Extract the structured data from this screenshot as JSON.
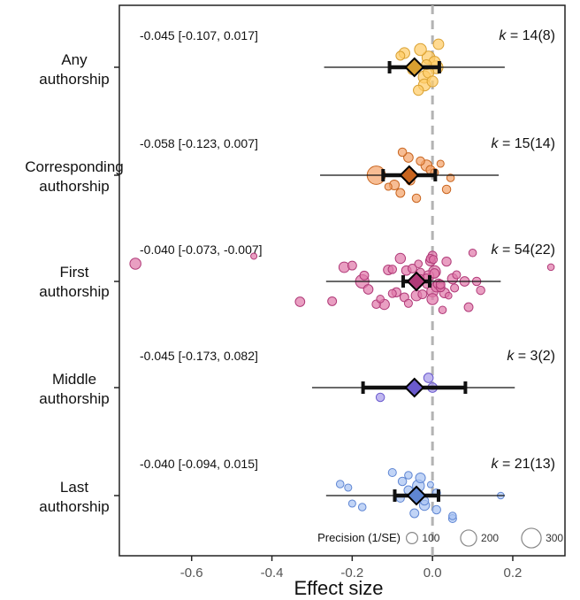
{
  "chart_data": {
    "type": "forest-scatter",
    "xlabel": "Effect size",
    "xlim": [
      -0.78,
      0.33
    ],
    "xticks": [
      -0.6,
      -0.4,
      -0.2,
      0.0,
      0.2
    ],
    "xtick_labels": [
      "-0.6",
      "-0.4",
      "-0.2",
      "0.0",
      "0.2"
    ],
    "reference_line": 0.0,
    "legend": {
      "title": "Precision (1/SE)",
      "sizes": [
        100,
        200,
        300
      ],
      "labels": [
        "100",
        "200",
        "300"
      ]
    },
    "groups": [
      {
        "label_line1": "Any",
        "label_line2": "authorship",
        "estimate": -0.045,
        "ci_low": -0.107,
        "ci_high": 0.017,
        "pi_low": -0.27,
        "pi_high": 0.18,
        "ci_text": "-0.045 [-0.107, 0.017]",
        "k_prefix": "k",
        "k_value": " = 14(8)",
        "color": "#FFCC66",
        "edge": "#D9A030",
        "points": [
          {
            "x": -0.01,
            "p": 90
          },
          {
            "x": 0.005,
            "p": 100
          },
          {
            "x": -0.02,
            "p": 120
          },
          {
            "x": 0.01,
            "p": 130
          },
          {
            "x": -0.08,
            "p": 60
          },
          {
            "x": -0.07,
            "p": 90
          },
          {
            "x": -0.05,
            "p": 70
          },
          {
            "x": -0.035,
            "p": 80
          },
          {
            "x": -0.015,
            "p": 75
          },
          {
            "x": 0.015,
            "p": 85
          },
          {
            "x": -0.03,
            "p": 110
          },
          {
            "x": -0.02,
            "p": 110
          },
          {
            "x": -0.01,
            "p": 130
          },
          {
            "x": 0.0,
            "p": 90
          }
        ]
      },
      {
        "label_line1": "Corresponding",
        "label_line2": "authorship",
        "estimate": -0.058,
        "ci_low": -0.123,
        "ci_high": 0.007,
        "pi_low": -0.28,
        "pi_high": 0.165,
        "ci_text": "-0.058 [-0.123, 0.007]",
        "k_prefix": "k",
        "k_value": " = 15(14)",
        "color": "#F4A36B",
        "edge": "#C8641E",
        "points": [
          {
            "x": -0.015,
            "p": 95
          },
          {
            "x": -0.08,
            "p": 60
          },
          {
            "x": 0.02,
            "p": 40
          },
          {
            "x": 0.045,
            "p": 45
          },
          {
            "x": -0.11,
            "p": 40
          },
          {
            "x": -0.095,
            "p": 75
          },
          {
            "x": -0.03,
            "p": 55
          },
          {
            "x": -0.005,
            "p": 60
          },
          {
            "x": 0.035,
            "p": 55
          },
          {
            "x": -0.075,
            "p": 55
          },
          {
            "x": -0.14,
            "p": 260
          },
          {
            "x": -0.04,
            "p": 55
          },
          {
            "x": 0.005,
            "p": 50
          },
          {
            "x": -0.06,
            "p": 70
          },
          {
            "x": -0.055,
            "p": 60
          }
        ]
      },
      {
        "label_line1": "First",
        "label_line2": "authorship",
        "estimate": -0.04,
        "ci_low": -0.073,
        "ci_high": -0.007,
        "pi_low": -0.265,
        "pi_high": 0.17,
        "ci_text": "-0.040 [-0.073, -0.007]",
        "k_prefix": "k",
        "k_value": " = 54(22)",
        "color": "#E07AAB",
        "edge": "#B03A78",
        "points": [
          {
            "x": -0.74,
            "p": 95
          },
          {
            "x": -0.445,
            "p": 30
          },
          {
            "x": -0.33,
            "p": 70
          },
          {
            "x": -0.25,
            "p": 60
          },
          {
            "x": -0.17,
            "p": 60
          },
          {
            "x": -0.1,
            "p": 50
          },
          {
            "x": 0.295,
            "p": 35
          },
          {
            "x": 0.002,
            "p": 50
          },
          {
            "x": -0.005,
            "p": 55
          },
          {
            "x": 0.005,
            "p": 70
          },
          {
            "x": -0.01,
            "p": 90
          },
          {
            "x": 0.01,
            "p": 85
          },
          {
            "x": 0.02,
            "p": 60
          },
          {
            "x": 0.04,
            "p": 35
          },
          {
            "x": -0.03,
            "p": 40
          },
          {
            "x": -0.06,
            "p": 50
          },
          {
            "x": -0.08,
            "p": 80
          },
          {
            "x": -0.12,
            "p": 80
          },
          {
            "x": -0.14,
            "p": 55
          },
          {
            "x": -0.16,
            "p": 70
          },
          {
            "x": -0.2,
            "p": 60
          },
          {
            "x": -0.22,
            "p": 85
          },
          {
            "x": -0.175,
            "p": 140
          },
          {
            "x": -0.11,
            "p": 75
          },
          {
            "x": -0.07,
            "p": 60
          },
          {
            "x": -0.03,
            "p": 55
          },
          {
            "x": 0.0,
            "p": 60
          },
          {
            "x": 0.03,
            "p": 75
          },
          {
            "x": 0.06,
            "p": 50
          },
          {
            "x": 0.09,
            "p": 60
          },
          {
            "x": 0.12,
            "p": 55
          },
          {
            "x": -0.015,
            "p": 60
          },
          {
            "x": 0.02,
            "p": 60
          },
          {
            "x": 0.05,
            "p": 80
          },
          {
            "x": 0.08,
            "p": 70
          },
          {
            "x": 0.11,
            "p": 55
          },
          {
            "x": -0.05,
            "p": 60
          },
          {
            "x": -0.09,
            "p": 65
          },
          {
            "x": -0.04,
            "p": 85
          },
          {
            "x": 0.0,
            "p": 95
          },
          {
            "x": 0.015,
            "p": 80
          },
          {
            "x": 0.035,
            "p": 65
          },
          {
            "x": -0.025,
            "p": 60
          },
          {
            "x": -0.065,
            "p": 70
          },
          {
            "x": 0.0,
            "p": 100
          },
          {
            "x": -0.005,
            "p": 75
          },
          {
            "x": -0.035,
            "p": 45
          },
          {
            "x": 0.055,
            "p": 50
          },
          {
            "x": -0.1,
            "p": 55
          },
          {
            "x": -0.13,
            "p": 45
          },
          {
            "x": 0.1,
            "p": 45
          },
          {
            "x": -0.015,
            "p": 40
          },
          {
            "x": 0.025,
            "p": 45
          },
          {
            "x": 0.005,
            "p": 110
          }
        ]
      },
      {
        "label_line1": "Middle",
        "label_line2": "authorship",
        "estimate": -0.045,
        "ci_low": -0.173,
        "ci_high": 0.082,
        "pi_low": -0.3,
        "pi_high": 0.205,
        "ci_text": "-0.045 [-0.173, 0.082]",
        "k_prefix": "k",
        "k_value": " = 3(2)",
        "color": "#A79BEA",
        "edge": "#6A5ACD",
        "points": [
          {
            "x": 0.0,
            "p": 70
          },
          {
            "x": -0.13,
            "p": 55
          },
          {
            "x": -0.01,
            "p": 70
          }
        ]
      },
      {
        "label_line1": "Last",
        "label_line2": "authorship",
        "estimate": -0.04,
        "ci_low": -0.094,
        "ci_high": 0.015,
        "pi_low": -0.265,
        "pi_high": 0.18,
        "ci_text": "-0.040 [-0.094, 0.015]",
        "k_prefix": "k",
        "k_value": " = 21(13)",
        "color": "#A9C3F2",
        "edge": "#5F86D3",
        "points": [
          {
            "x": -0.005,
            "p": 30
          },
          {
            "x": -0.02,
            "p": 55
          },
          {
            "x": -0.045,
            "p": 60
          },
          {
            "x": -0.075,
            "p": 55
          },
          {
            "x": -0.21,
            "p": 40
          },
          {
            "x": -0.23,
            "p": 45
          },
          {
            "x": -0.175,
            "p": 45
          },
          {
            "x": -0.2,
            "p": 40
          },
          {
            "x": -0.1,
            "p": 50
          },
          {
            "x": 0.01,
            "p": 55
          },
          {
            "x": 0.05,
            "p": 50
          },
          {
            "x": 0.17,
            "p": 35
          },
          {
            "x": -0.06,
            "p": 60
          },
          {
            "x": -0.03,
            "p": 75
          },
          {
            "x": 0.01,
            "p": 50
          },
          {
            "x": -0.035,
            "p": 110
          },
          {
            "x": -0.06,
            "p": 45
          },
          {
            "x": 0.05,
            "p": 45
          },
          {
            "x": -0.08,
            "p": 50
          },
          {
            "x": -0.02,
            "p": 80
          },
          {
            "x": -0.04,
            "p": 120
          }
        ]
      }
    ]
  }
}
